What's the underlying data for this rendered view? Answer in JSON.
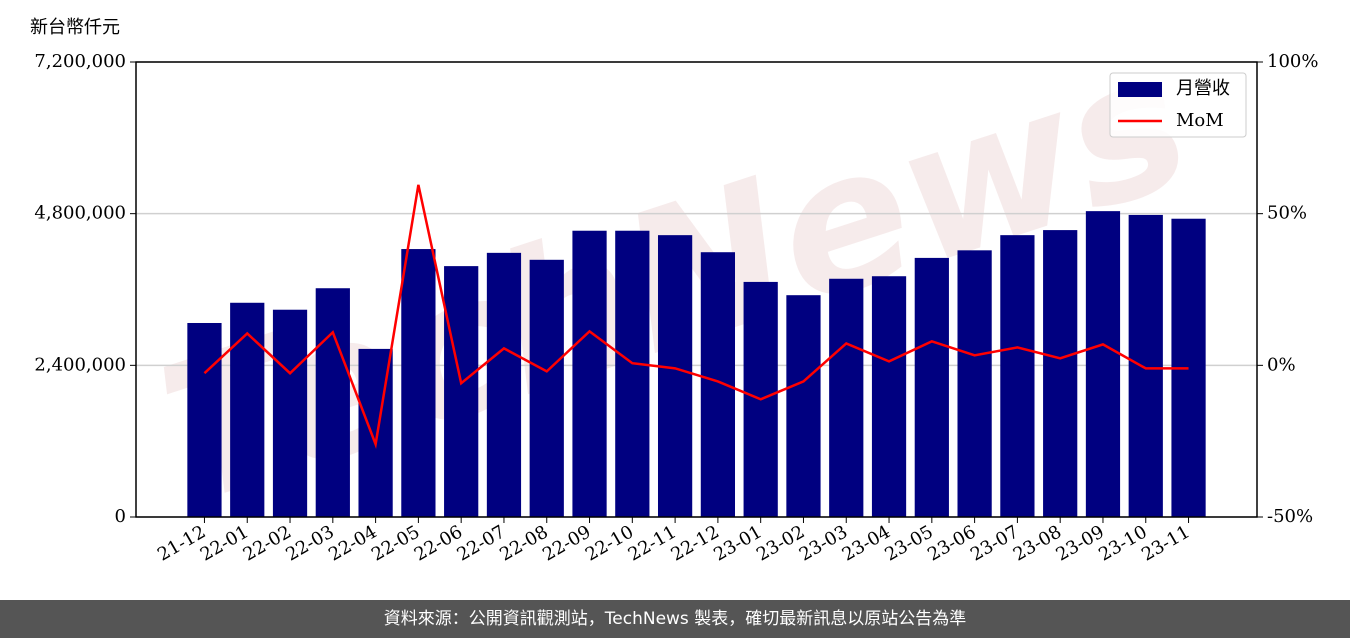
{
  "chart_data": {
    "type": "bar",
    "y_label": "新台幣仟元",
    "watermark": "TechNews",
    "categories": [
      "21-12",
      "22-01",
      "22-02",
      "22-03",
      "22-04",
      "22-05",
      "22-06",
      "22-07",
      "22-08",
      "22-09",
      "22-10",
      "22-11",
      "22-12",
      "23-01",
      "23-02",
      "23-03",
      "23-04",
      "23-05",
      "23-06",
      "23-07",
      "23-08",
      "23-09",
      "23-10",
      "23-11"
    ],
    "series": [
      {
        "name": "月營收",
        "type": "bar",
        "color": "#000080",
        "values": [
          3070000,
          3390000,
          3280000,
          3620000,
          2660000,
          4240000,
          3970000,
          4180000,
          4070000,
          4530000,
          4530000,
          4460000,
          4190000,
          3720000,
          3510000,
          3770000,
          3810000,
          4100000,
          4220000,
          4460000,
          4540000,
          4840000,
          4780000,
          4720000
        ]
      },
      {
        "name": "MoM",
        "type": "line",
        "axis": "y2",
        "color": "#ff0000",
        "values": [
          -2.6,
          10.5,
          -2.6,
          10.9,
          -26,
          59.5,
          -5.9,
          5.6,
          -2.0,
          11.2,
          0.7,
          -1.0,
          -5.3,
          -11.2,
          -5.3,
          7.2,
          1.3,
          7.9,
          3.3,
          5.9,
          2.3,
          6.9,
          -1.0,
          -1.0
        ]
      }
    ],
    "ylim": [
      0,
      7200000
    ],
    "yticks": [
      0,
      {
        "value": 2400000,
        "label": "2,400,000"
      },
      {
        "value": 4800000,
        "label": "4,800,000"
      },
      {
        "value": 7200000,
        "label": "7,200,000"
      }
    ],
    "y2lim": [
      -50,
      100
    ],
    "y2ticks": [
      {
        "value": -50,
        "label": "-50%"
      },
      {
        "value": 0,
        "label": "0%"
      },
      {
        "value": 50,
        "label": "50%"
      },
      {
        "value": 100,
        "label": "100%"
      }
    ],
    "grid": true,
    "legend": "upper right"
  },
  "footer": "資料來源：公開資訊觀測站，TechNews 製表，確切最新訊息以原站公告為準"
}
